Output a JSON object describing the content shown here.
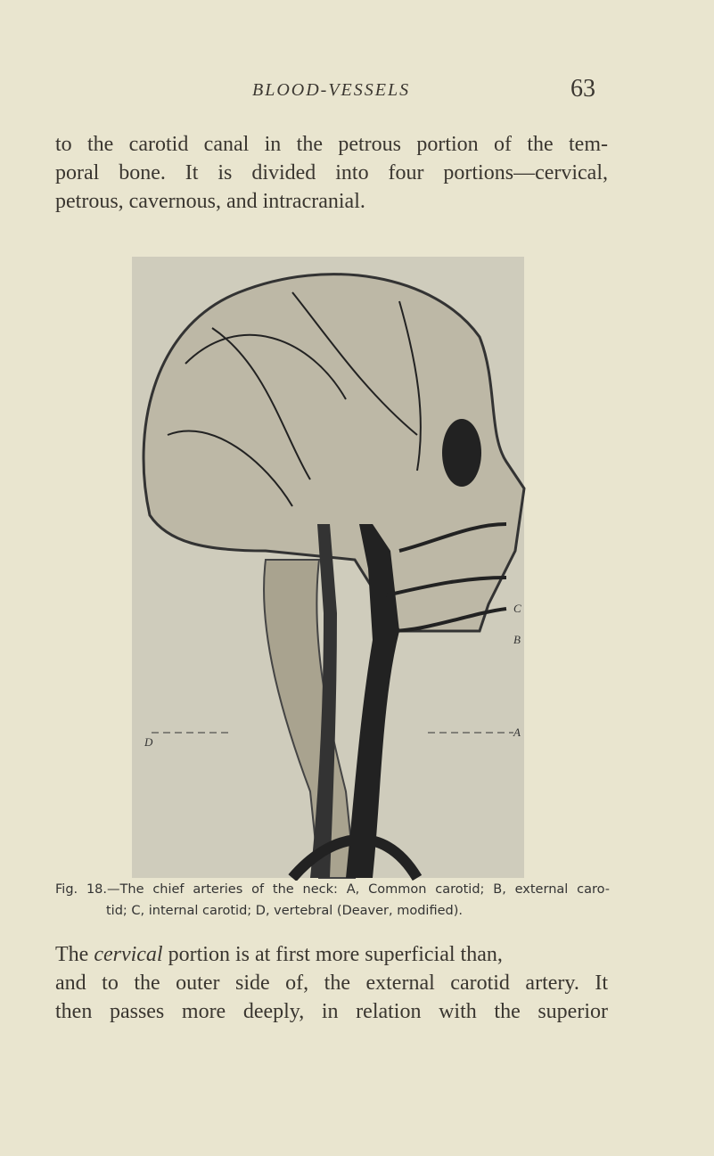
{
  "header": {
    "title": "BLOOD-VESSELS",
    "page_number": "63"
  },
  "paragraph_1": [
    "to the carotid canal in the petrous portion of the tem-",
    "poral bone. It is divided into four portions—cervical,",
    "petrous, cavernous, and intracranial."
  ],
  "figure": {
    "labels": [
      "C",
      "B",
      "A",
      "D"
    ],
    "caption": [
      "Fig. 18.—The chief arteries of the neck: A, Common carotid; B, external caro-",
      "tid; C, internal carotid; D, vertebral (Deaver, modified)."
    ]
  },
  "paragraph_2": [
    {
      "start": "The ",
      "emphasis": "cervical",
      "end": " portion is at first more superficial than,"
    },
    "and to the outer side of, the external carotid artery. It",
    "then passes more deeply, in relation with the superior"
  ]
}
